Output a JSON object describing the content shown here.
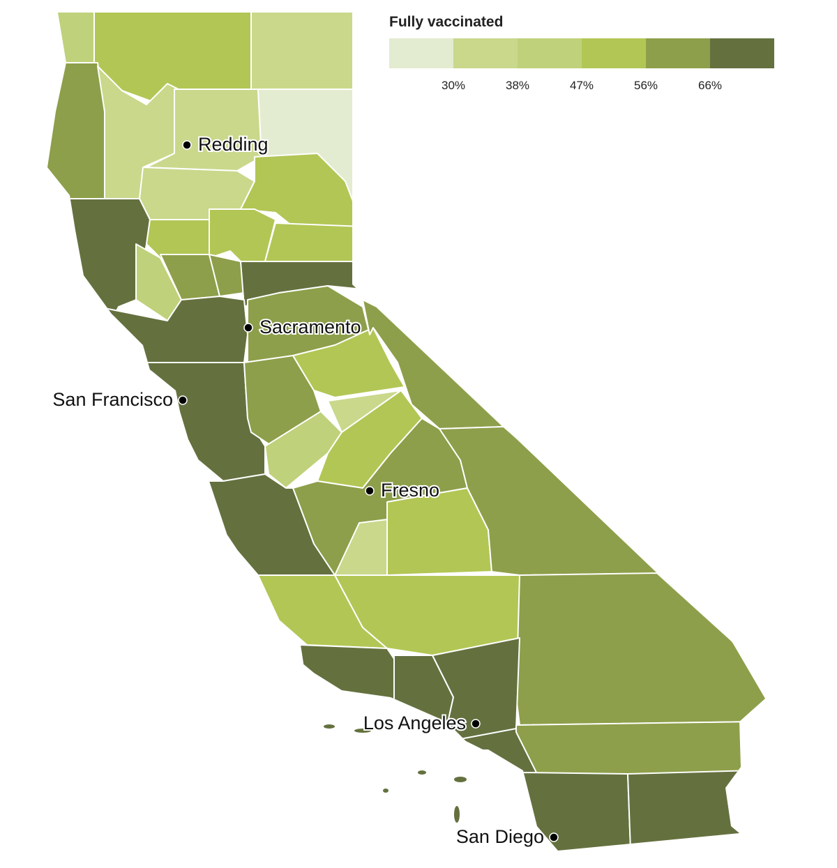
{
  "legend": {
    "title": "Fully vaccinated",
    "colors": [
      "#e3ecd0",
      "#c9d88b",
      "#bfd17a",
      "#b2c655",
      "#8d9f4a",
      "#64713f"
    ],
    "ticks": [
      {
        "value": 30,
        "label": "30%"
      },
      {
        "value": 38,
        "label": "38%"
      },
      {
        "value": 47,
        "label": "47%"
      },
      {
        "value": 56,
        "label": "56%"
      },
      {
        "value": 66,
        "label": "66%"
      }
    ]
  },
  "cities": [
    "Redding",
    "Sacramento",
    "San Francisco",
    "Fresno",
    "Los Angeles",
    "San Diego"
  ]
}
